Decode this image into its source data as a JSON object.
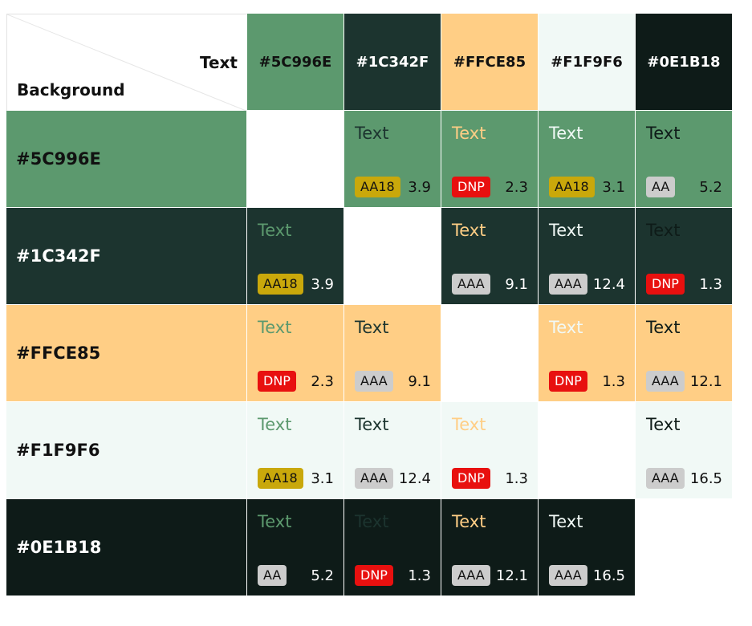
{
  "corner": {
    "text_label": "Text",
    "background_label": "Background"
  },
  "sample_text": "Text",
  "columns": [
    {
      "label": "#5C996E",
      "color": "#5C996E",
      "fg": "#111111"
    },
    {
      "label": "#1C342F",
      "color": "#1C342F",
      "fg": "#ffffff"
    },
    {
      "label": "#FFCE85",
      "color": "#FFCE85",
      "fg": "#111111"
    },
    {
      "label": "#F1F9F6",
      "color": "#F1F9F6",
      "fg": "#111111"
    },
    {
      "label": "#0E1B18",
      "color": "#0E1B18",
      "fg": "#ffffff"
    }
  ],
  "rows": [
    {
      "label": "#5C996E",
      "color": "#5C996E",
      "fg": "#111111",
      "cells": [
        null,
        {
          "rating": "AA18",
          "ratio": "3.9",
          "ratio_color": "#111111"
        },
        {
          "rating": "DNP",
          "ratio": "2.3",
          "ratio_color": "#111111"
        },
        {
          "rating": "AA18",
          "ratio": "3.1",
          "ratio_color": "#111111"
        },
        {
          "rating": "AA",
          "ratio": "5.2",
          "ratio_color": "#111111"
        }
      ]
    },
    {
      "label": "#1C342F",
      "color": "#1C342F",
      "fg": "#ffffff",
      "cells": [
        {
          "rating": "AA18",
          "ratio": "3.9",
          "ratio_color": "#ffffff"
        },
        null,
        {
          "rating": "AAA",
          "ratio": "9.1",
          "ratio_color": "#ffffff"
        },
        {
          "rating": "AAA",
          "ratio": "12.4",
          "ratio_color": "#ffffff"
        },
        {
          "rating": "DNP",
          "ratio": "1.3",
          "ratio_color": "#ffffff"
        }
      ]
    },
    {
      "label": "#FFCE85",
      "color": "#FFCE85",
      "fg": "#111111",
      "cells": [
        {
          "rating": "DNP",
          "ratio": "2.3",
          "ratio_color": "#111111"
        },
        {
          "rating": "AAA",
          "ratio": "9.1",
          "ratio_color": "#111111"
        },
        null,
        {
          "rating": "DNP",
          "ratio": "1.3",
          "ratio_color": "#111111"
        },
        {
          "rating": "AAA",
          "ratio": "12.1",
          "ratio_color": "#111111"
        }
      ]
    },
    {
      "label": "#F1F9F6",
      "color": "#F1F9F6",
      "fg": "#111111",
      "cells": [
        {
          "rating": "AA18",
          "ratio": "3.1",
          "ratio_color": "#111111"
        },
        {
          "rating": "AAA",
          "ratio": "12.4",
          "ratio_color": "#111111"
        },
        {
          "rating": "DNP",
          "ratio": "1.3",
          "ratio_color": "#111111"
        },
        null,
        {
          "rating": "AAA",
          "ratio": "16.5",
          "ratio_color": "#111111"
        }
      ]
    },
    {
      "label": "#0E1B18",
      "color": "#0E1B18",
      "fg": "#ffffff",
      "cells": [
        {
          "rating": "AA",
          "ratio": "5.2",
          "ratio_color": "#ffffff"
        },
        {
          "rating": "DNP",
          "ratio": "1.3",
          "ratio_color": "#ffffff"
        },
        {
          "rating": "AAA",
          "ratio": "12.1",
          "ratio_color": "#ffffff"
        },
        {
          "rating": "AAA",
          "ratio": "16.5",
          "ratio_color": "#ffffff"
        },
        null
      ]
    }
  ]
}
